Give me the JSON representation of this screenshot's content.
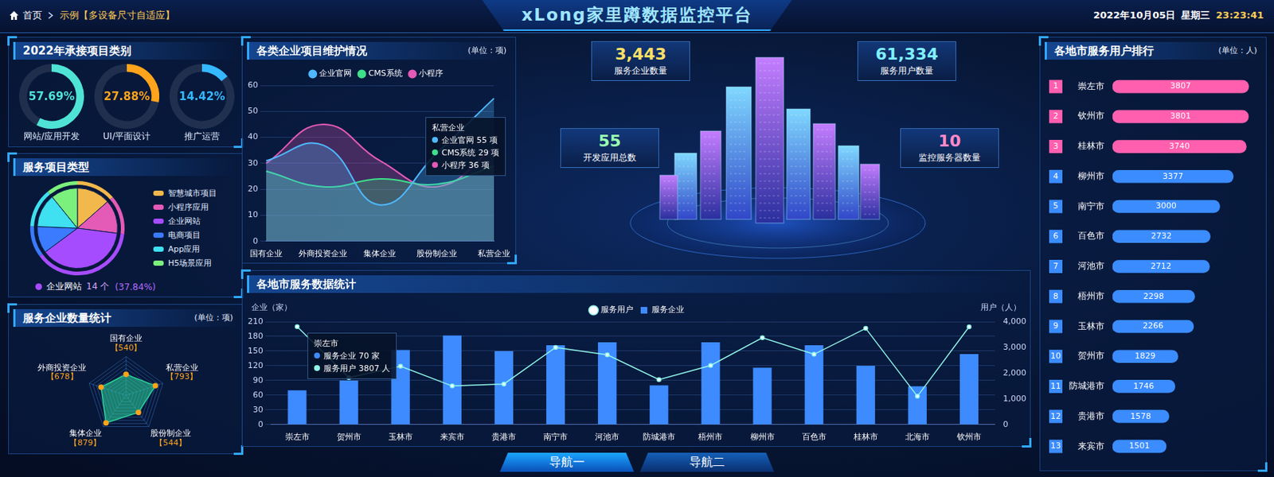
{
  "header": {
    "breadcrumb": [
      "首页",
      "示例【多设备尺寸自适应】"
    ],
    "title": "xLong家里蹲数据监控平台",
    "date": "2022年10月05日",
    "weekday": "星期三",
    "time": "23:23:41"
  },
  "kpis": [
    {
      "value": "3,443",
      "label": "服务企业数量"
    },
    {
      "value": "61,334",
      "label": "服务用户数量"
    },
    {
      "value": "55",
      "label": "开发应用总数"
    },
    {
      "value": "10",
      "label": "监控服务器数量"
    }
  ],
  "nav": [
    "导航一",
    "导航二"
  ],
  "chart_data": [
    {
      "type": "doughnut",
      "title": "2022年承接项目类别",
      "categories": [
        "网站/应用开发",
        "UI/平面设计",
        "推广运营"
      ],
      "values": [
        57.69,
        27.88,
        14.42
      ],
      "value_labels": [
        "57.69%",
        "27.88%",
        "14.42%"
      ],
      "colors": [
        "#4fe3d6",
        "#ffa41b",
        "#35b8ff"
      ],
      "ylim": [
        0,
        100
      ]
    },
    {
      "type": "pie",
      "title": "服务项目类型",
      "categories": [
        "智慧城市项目",
        "小程序应用",
        "企业网站",
        "电商项目",
        "App应用",
        "H5场景应用"
      ],
      "values": [
        5,
        5,
        14,
        4,
        5,
        4
      ],
      "colors": [
        "#f2b84b",
        "#e45ab7",
        "#a64cff",
        "#3b7bff",
        "#3fe0f0",
        "#7cf07c"
      ],
      "legend": "right",
      "annotations": [
        "企业网站",
        "14 个",
        "(37.84%)"
      ]
    },
    {
      "type": "radar",
      "title": "服务企业数量统计",
      "subtitle": "(单位：项)",
      "categories": [
        "国有企业",
        "私营企业",
        "股份制企业",
        "集体企业",
        "外商投资企业"
      ],
      "values": [
        540,
        793,
        544,
        879,
        678
      ],
      "value_labels": [
        "【540】",
        "【793】",
        "【544】",
        "【879】",
        "【678】"
      ],
      "color": "#2bd49a",
      "ylim": [
        0,
        1000
      ],
      "tick_labels": false,
      "data_labels": true
    },
    {
      "type": "line",
      "title": "各类企业项目维护情况",
      "subtitle": "(单位：项)",
      "categories": [
        "国有企业",
        "外商投资企业",
        "集体企业",
        "股份制企业",
        "私营企业"
      ],
      "series": [
        {
          "name": "企业官网",
          "color": "#4fb8ff",
          "values": [
            31,
            37,
            14,
            34,
            55
          ]
        },
        {
          "name": "CMS系统",
          "color": "#3ee08a",
          "values": [
            27,
            21,
            24,
            22,
            29
          ]
        },
        {
          "name": "小程序",
          "color": "#e45ab7",
          "values": [
            30,
            45,
            31,
            21,
            36
          ]
        }
      ],
      "ylim": [
        0,
        60
      ],
      "yticks": [
        0,
        10,
        20,
        30,
        40,
        50,
        60
      ],
      "grid": true,
      "legend": "top",
      "annotations": [
        "私营企业",
        "企业官网 55 项",
        "CMS系统 29 项",
        "小程序 36 项"
      ]
    },
    {
      "type": "bar",
      "title": "各地市服务数据统计",
      "categories": [
        "崇左市",
        "贺州市",
        "玉林市",
        "来宾市",
        "贵港市",
        "南宁市",
        "河池市",
        "防城港市",
        "梧州市",
        "柳州市",
        "百色市",
        "桂林市",
        "北海市",
        "钦州市"
      ],
      "series": [
        {
          "name": "服务企业",
          "type": "bar",
          "color": "#3d8bff",
          "values": [
            70,
            90,
            152,
            182,
            150,
            162,
            168,
            80,
            168,
            116,
            162,
            120,
            78,
            144
          ]
        },
        {
          "name": "服务用户",
          "type": "line",
          "axis": "y2",
          "color": "#8ff5e8",
          "marker": "circle",
          "values": [
            3807,
            1829,
            2266,
            1501,
            1578,
            3000,
            2712,
            1746,
            2298,
            3377,
            2732,
            3740,
            1100,
            3801
          ]
        }
      ],
      "ylabel": "企业（家）",
      "y2label": "用户（人）",
      "ylim": [
        0,
        210
      ],
      "yticks": [
        0,
        30,
        60,
        90,
        120,
        150,
        180,
        210
      ],
      "y2lim": [
        0,
        4000
      ],
      "y2ticks": [
        0,
        {
          "value": 1000,
          "label": "1,000"
        },
        {
          "value": 2000,
          "label": "2,000"
        },
        {
          "value": 3000,
          "label": "3,000"
        },
        {
          "value": 4000,
          "label": "4,000"
        }
      ],
      "grid": true,
      "legend": "top",
      "annotations": [
        "崇左市",
        "服务企业 70 家",
        "服务用户 3807 人"
      ]
    },
    {
      "type": "bar",
      "orientation": "horizontal",
      "title": "各地市服务用户排行",
      "subtitle": "(单位：人)",
      "categories": [
        "崇左市",
        "钦州市",
        "桂林市",
        "柳州市",
        "南宁市",
        "百色市",
        "河池市",
        "梧州市",
        "玉林市",
        "贺州市",
        "防城港市",
        "贵港市",
        "来宾市"
      ],
      "ranks": [
        1,
        2,
        3,
        4,
        5,
        6,
        7,
        8,
        9,
        10,
        11,
        12,
        13
      ],
      "values": [
        3807,
        3801,
        3740,
        3377,
        3000,
        2732,
        2712,
        2298,
        2266,
        1829,
        1746,
        1578,
        1501
      ],
      "colors": [
        "#ff5fae",
        "#ff5fae",
        "#ff5fae",
        "#3b8cff",
        "#3b8cff",
        "#3b8cff",
        "#3b8cff",
        "#3b8cff",
        "#3b8cff",
        "#3b8cff",
        "#3b8cff",
        "#3b8cff",
        "#3b8cff"
      ],
      "xlim": [
        0,
        4000
      ],
      "tick_labels": "y",
      "data_labels": true
    }
  ]
}
